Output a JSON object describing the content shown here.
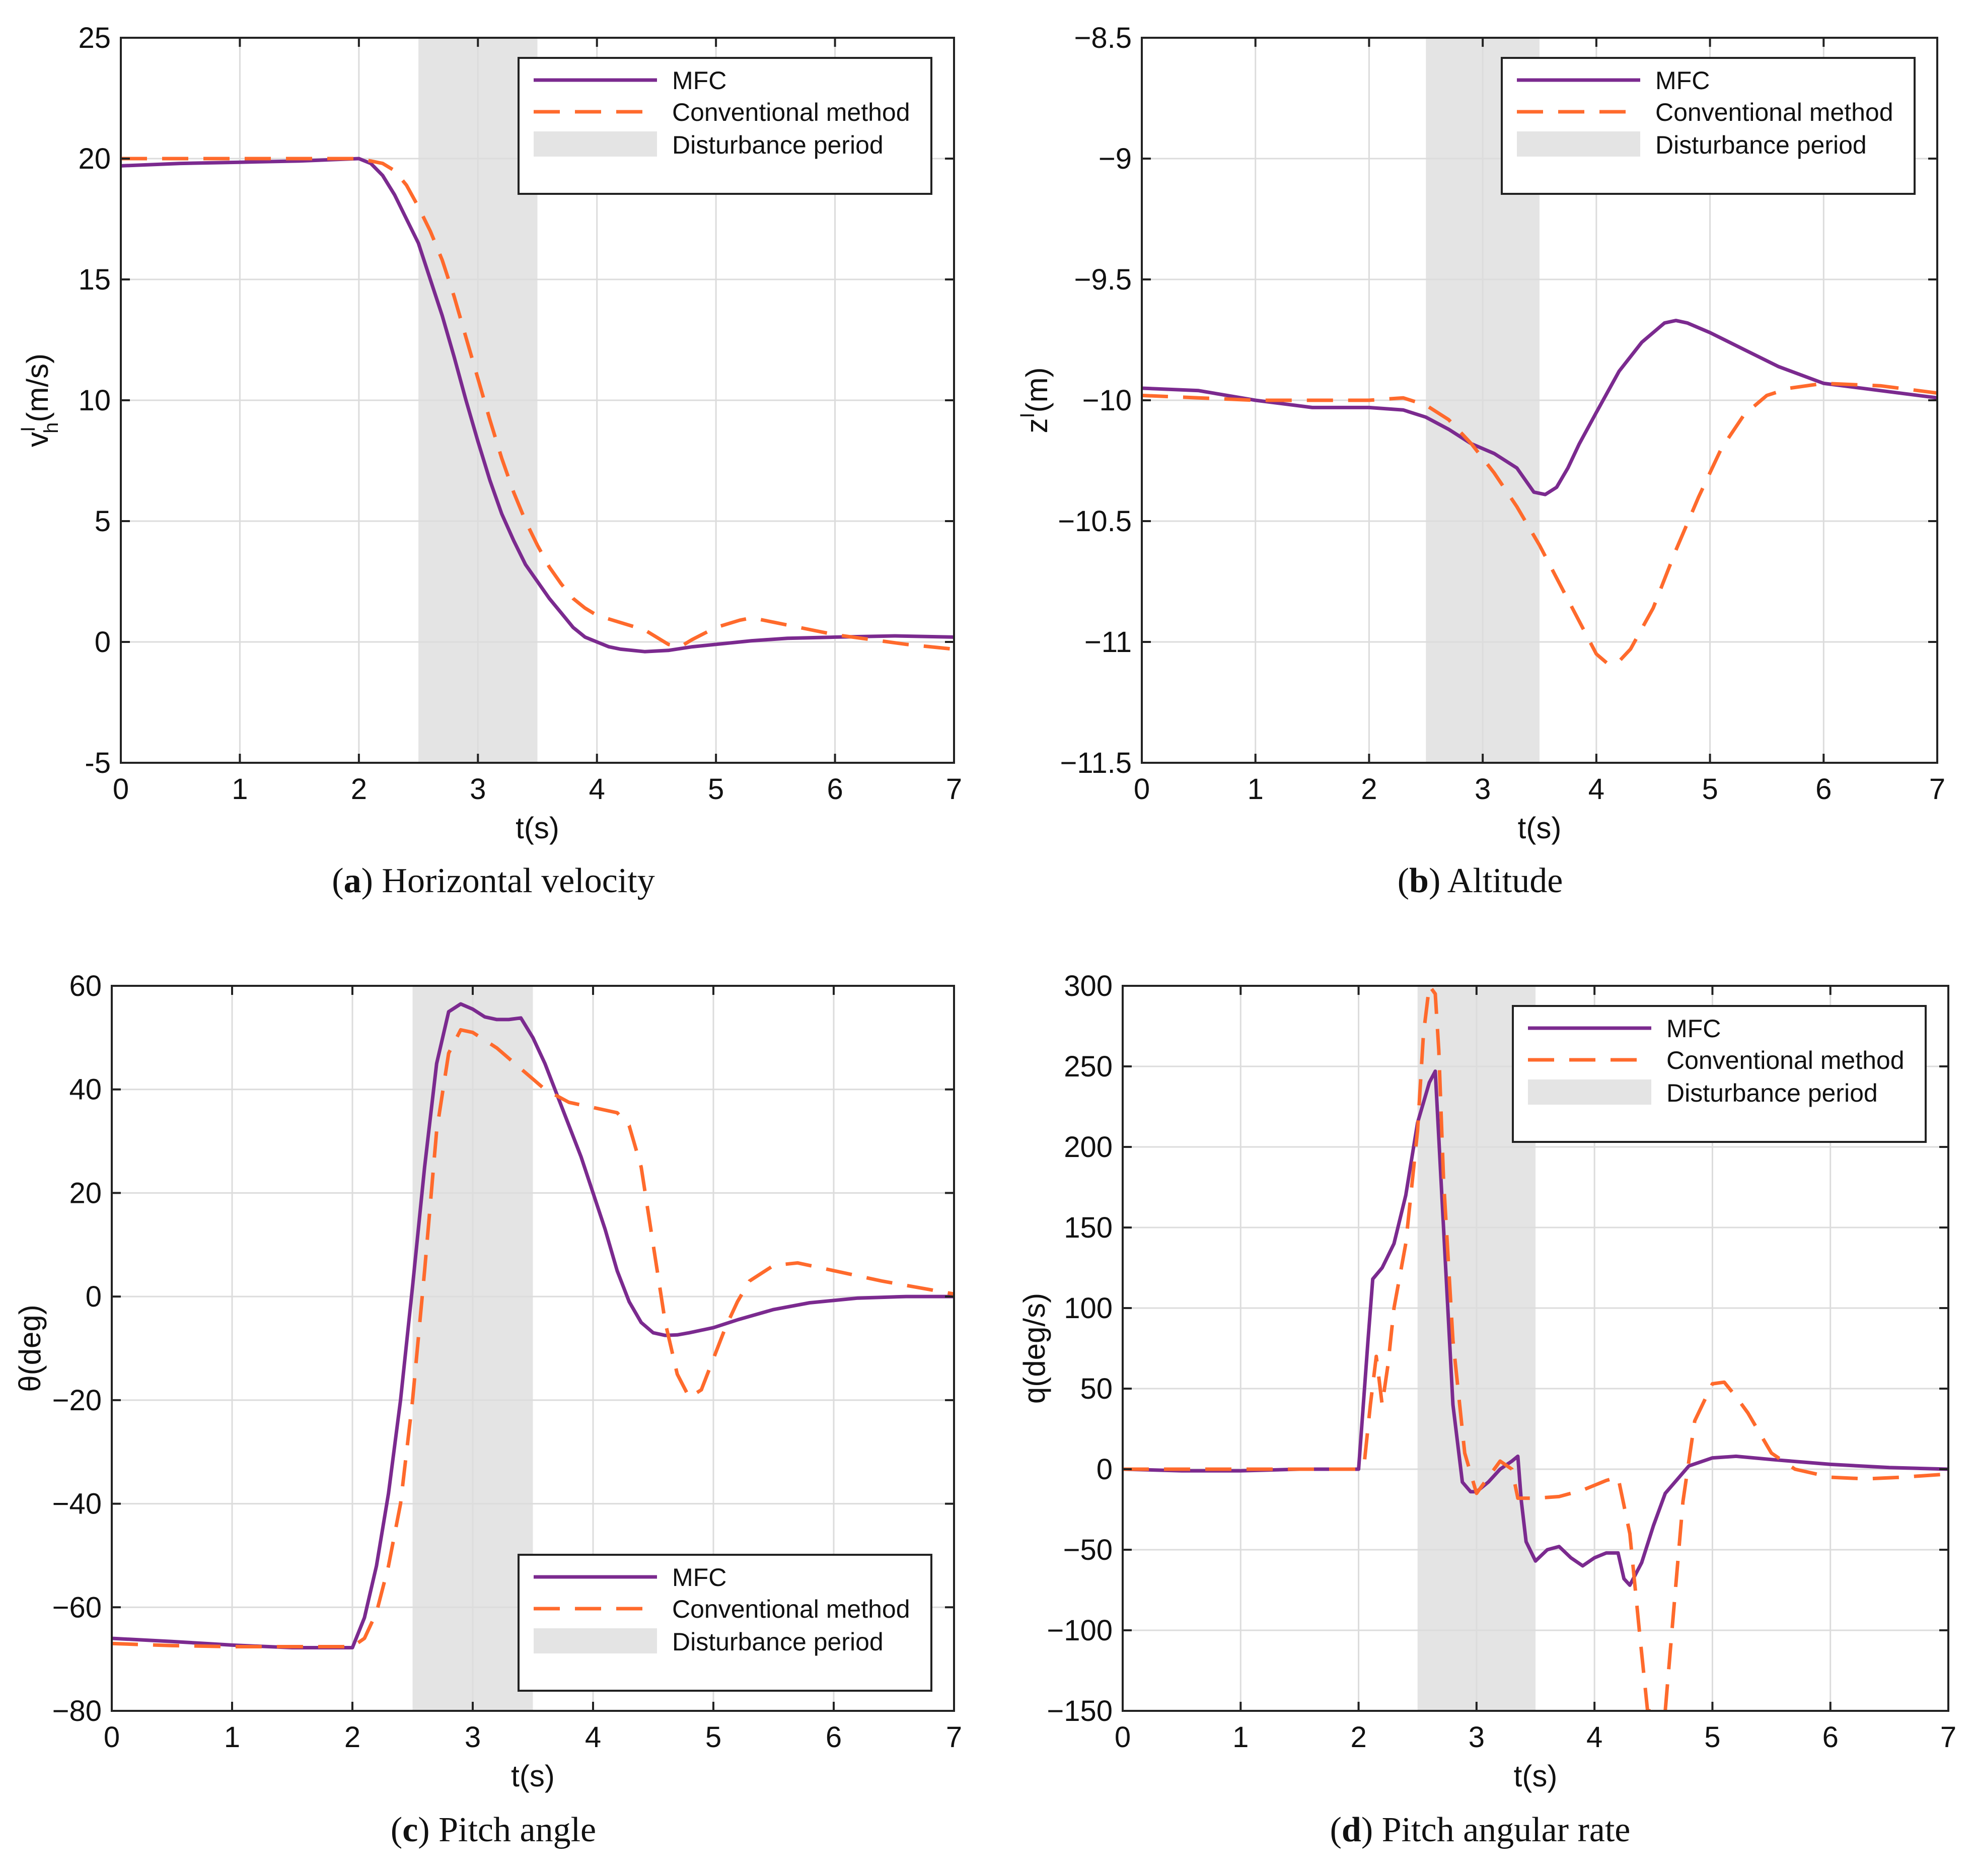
{
  "colors": {
    "mfc": "#7b2a8f",
    "conventional": "#ff6a2c",
    "disturbance": "#e4e4e4",
    "grid": "#dcdcdc",
    "axis": "#222222"
  },
  "chart_data": [
    {
      "id": "a",
      "type": "line",
      "caption_label": "a",
      "caption_text": "Horizontal velocity",
      "title": "",
      "xlabel": "t(s)",
      "ylabel": "v",
      "ylabel_sub": "h",
      "ylabel_sup": "I",
      "ylabel_tail": "(m/s)",
      "xlim": [
        0,
        7
      ],
      "ylim": [
        -5,
        25
      ],
      "xticks": [
        0,
        1,
        2,
        3,
        4,
        5,
        6,
        7
      ],
      "xtick_labels": [
        "0",
        "1",
        "2",
        "3",
        "4",
        "5",
        "6",
        "7"
      ],
      "yticks": [
        -5,
        0,
        5,
        10,
        15,
        20,
        25
      ],
      "ytick_labels": [
        "-5",
        "0",
        "5",
        "10",
        "15",
        "20",
        "25"
      ],
      "grid": true,
      "disturbance": [
        2.5,
        3.5
      ],
      "legend": {
        "position": "top-right",
        "entries": [
          "MFC",
          "Conventional method",
          "Disturbance period"
        ]
      },
      "series": [
        {
          "name": "MFC",
          "style": "solid",
          "x": [
            0,
            0.5,
            1,
            1.5,
            2,
            2.1,
            2.2,
            2.3,
            2.4,
            2.5,
            2.6,
            2.7,
            2.8,
            2.9,
            3.0,
            3.1,
            3.2,
            3.3,
            3.4,
            3.5,
            3.6,
            3.7,
            3.8,
            3.9,
            4.0,
            4.1,
            4.2,
            4.4,
            4.6,
            4.8,
            5.0,
            5.3,
            5.6,
            6.0,
            6.5,
            7.0
          ],
          "y": [
            19.7,
            19.8,
            19.85,
            19.9,
            20,
            19.8,
            19.3,
            18.5,
            17.5,
            16.5,
            15.0,
            13.5,
            11.8,
            10.0,
            8.3,
            6.7,
            5.3,
            4.2,
            3.2,
            2.5,
            1.8,
            1.2,
            0.6,
            0.2,
            0.0,
            -0.2,
            -0.3,
            -0.4,
            -0.35,
            -0.2,
            -0.1,
            0.05,
            0.15,
            0.2,
            0.25,
            0.2
          ]
        },
        {
          "name": "Conventional method",
          "style": "dashed",
          "x": [
            0,
            0.5,
            1,
            1.5,
            2,
            2.2,
            2.3,
            2.4,
            2.5,
            2.6,
            2.7,
            2.8,
            2.9,
            3.0,
            3.1,
            3.2,
            3.3,
            3.4,
            3.5,
            3.6,
            3.7,
            3.8,
            3.9,
            4.0,
            4.2,
            4.4,
            4.6,
            4.7,
            4.8,
            5.0,
            5.2,
            5.3,
            5.5,
            5.8,
            6.0,
            6.3,
            6.6,
            7.0
          ],
          "y": [
            20,
            20,
            20,
            20,
            20,
            19.8,
            19.5,
            18.9,
            18.0,
            17.0,
            15.8,
            14.3,
            12.6,
            10.9,
            9.2,
            7.6,
            6.2,
            5.0,
            4.0,
            3.1,
            2.4,
            1.8,
            1.4,
            1.1,
            0.8,
            0.5,
            -0.1,
            -0.2,
            0.1,
            0.6,
            0.9,
            1.0,
            0.8,
            0.5,
            0.3,
            0.1,
            -0.1,
            -0.3
          ]
        }
      ]
    },
    {
      "id": "b",
      "type": "line",
      "caption_label": "b",
      "caption_text": "Altitude",
      "title": "",
      "xlabel": "t(s)",
      "ylabel": "z",
      "ylabel_sub": "",
      "ylabel_sup": "I",
      "ylabel_tail": "(m)",
      "xlim": [
        0,
        7
      ],
      "ylim": [
        -11.5,
        -8.5
      ],
      "xticks": [
        0,
        1,
        2,
        3,
        4,
        5,
        6,
        7
      ],
      "xtick_labels": [
        "0",
        "1",
        "2",
        "3",
        "4",
        "5",
        "6",
        "7"
      ],
      "yticks": [
        -11.5,
        -11,
        -10.5,
        -10,
        -9.5,
        -9,
        -8.5
      ],
      "ytick_labels": [
        "−11.5",
        "−11",
        "−10.5",
        "−10",
        "−9.5",
        "−9",
        "−8.5"
      ],
      "grid": true,
      "disturbance": [
        2.5,
        3.5
      ],
      "legend": {
        "position": "top-right",
        "entries": [
          "MFC",
          "Conventional method",
          "Disturbance period"
        ]
      },
      "series": [
        {
          "name": "MFC",
          "style": "solid",
          "x": [
            0,
            0.5,
            1,
            1.5,
            2,
            2.3,
            2.5,
            2.7,
            2.9,
            3.1,
            3.3,
            3.45,
            3.55,
            3.65,
            3.75,
            3.85,
            4.0,
            4.2,
            4.4,
            4.6,
            4.7,
            4.8,
            5.0,
            5.3,
            5.6,
            6.0,
            6.5,
            7.0
          ],
          "y": [
            -9.95,
            -9.96,
            -10.0,
            -10.03,
            -10.03,
            -10.04,
            -10.07,
            -10.12,
            -10.18,
            -10.22,
            -10.28,
            -10.38,
            -10.39,
            -10.36,
            -10.28,
            -10.18,
            -10.05,
            -9.88,
            -9.76,
            -9.68,
            -9.67,
            -9.68,
            -9.72,
            -9.79,
            -9.86,
            -9.93,
            -9.96,
            -9.99
          ]
        },
        {
          "name": "Conventional method",
          "style": "dashed",
          "x": [
            0,
            0.5,
            1,
            1.5,
            2,
            2.3,
            2.5,
            2.7,
            2.9,
            3.1,
            3.3,
            3.5,
            3.7,
            3.9,
            4.0,
            4.1,
            4.2,
            4.3,
            4.5,
            4.7,
            4.9,
            5.1,
            5.3,
            5.5,
            5.7,
            6.0,
            6.5,
            7.0
          ],
          "y": [
            -9.98,
            -9.99,
            -10.0,
            -10.0,
            -10.0,
            -9.99,
            -10.02,
            -10.08,
            -10.18,
            -10.3,
            -10.44,
            -10.6,
            -10.78,
            -10.96,
            -11.05,
            -11.09,
            -11.08,
            -11.03,
            -10.86,
            -10.62,
            -10.4,
            -10.2,
            -10.06,
            -9.98,
            -9.95,
            -9.93,
            -9.94,
            -9.97
          ]
        }
      ]
    },
    {
      "id": "c",
      "type": "line",
      "caption_label": "c",
      "caption_text": "Pitch angle",
      "title": "",
      "xlabel": "t(s)",
      "ylabel": "θ",
      "ylabel_sub": "",
      "ylabel_sup": "",
      "ylabel_tail": "(deg)",
      "xlim": [
        0,
        7
      ],
      "ylim": [
        -80,
        60
      ],
      "xticks": [
        0,
        1,
        2,
        3,
        4,
        5,
        6,
        7
      ],
      "xtick_labels": [
        "0",
        "1",
        "2",
        "3",
        "4",
        "5",
        "6",
        "7"
      ],
      "yticks": [
        -80,
        -60,
        -40,
        -20,
        0,
        20,
        40,
        60
      ],
      "ytick_labels": [
        "−80",
        "−60",
        "−40",
        "−20",
        "0",
        "20",
        "40",
        "60"
      ],
      "grid": true,
      "disturbance": [
        2.5,
        3.5
      ],
      "legend": {
        "position": "bottom-right",
        "entries": [
          "MFC",
          "Conventional method",
          "Disturbance period"
        ]
      },
      "series": [
        {
          "name": "MFC",
          "style": "solid",
          "x": [
            0,
            0.5,
            1,
            1.5,
            2,
            2.1,
            2.2,
            2.3,
            2.4,
            2.5,
            2.6,
            2.7,
            2.8,
            2.9,
            3.0,
            3.1,
            3.2,
            3.3,
            3.4,
            3.5,
            3.6,
            3.7,
            3.8,
            3.9,
            4.0,
            4.1,
            4.2,
            4.3,
            4.4,
            4.5,
            4.6,
            4.7,
            4.8,
            5.0,
            5.2,
            5.5,
            5.8,
            6.2,
            6.6,
            7.0
          ],
          "y": [
            -66,
            -66.6,
            -67.3,
            -67.8,
            -67.8,
            -62,
            -52,
            -38,
            -20,
            2,
            25,
            45,
            55,
            56.5,
            55.5,
            54,
            53.5,
            53.5,
            53.8,
            50,
            45,
            39,
            33,
            27,
            20,
            13,
            5,
            -1,
            -5,
            -7,
            -7.5,
            -7.4,
            -7,
            -6,
            -4.5,
            -2.5,
            -1.2,
            -0.3,
            0,
            0
          ]
        },
        {
          "name": "Conventional method",
          "style": "dashed",
          "x": [
            0,
            0.5,
            1,
            1.5,
            2,
            2.1,
            2.2,
            2.3,
            2.4,
            2.5,
            2.6,
            2.7,
            2.8,
            2.9,
            3.0,
            3.1,
            3.2,
            3.3,
            3.4,
            3.5,
            3.6,
            3.8,
            4.0,
            4.2,
            4.3,
            4.4,
            4.5,
            4.6,
            4.7,
            4.8,
            4.9,
            5.0,
            5.1,
            5.2,
            5.3,
            5.5,
            5.7,
            6.0,
            6.4,
            7.0
          ],
          "y": [
            -67,
            -67.4,
            -67.6,
            -67.6,
            -67.6,
            -66,
            -61,
            -52,
            -40,
            -20,
            5,
            32,
            47,
            51.5,
            51,
            49.5,
            48,
            46,
            44,
            42,
            40,
            37.5,
            36.5,
            35.5,
            33,
            25,
            10,
            -5,
            -15,
            -19.5,
            -18,
            -12,
            -6,
            -1,
            3,
            6,
            6.5,
            5,
            3,
            0.5
          ]
        }
      ]
    },
    {
      "id": "d",
      "type": "line",
      "caption_label": "d",
      "caption_text": "Pitch angular rate",
      "title": "",
      "xlabel": "t(s)",
      "ylabel": "q",
      "ylabel_sub": "",
      "ylabel_sup": "",
      "ylabel_tail": "(deg/s)",
      "xlim": [
        0,
        7
      ],
      "ylim": [
        -150,
        300
      ],
      "xticks": [
        0,
        1,
        2,
        3,
        4,
        5,
        6,
        7
      ],
      "xtick_labels": [
        "0",
        "1",
        "2",
        "3",
        "4",
        "5",
        "6",
        "7"
      ],
      "yticks": [
        -150,
        -100,
        -50,
        0,
        50,
        100,
        150,
        200,
        250,
        300
      ],
      "ytick_labels": [
        "−150",
        "−100",
        "−50",
        "0",
        "50",
        "100",
        "150",
        "200",
        "250",
        "300"
      ],
      "grid": true,
      "disturbance": [
        2.5,
        3.5
      ],
      "legend": {
        "position": "top-right",
        "entries": [
          "MFC",
          "Conventional method",
          "Disturbance period"
        ]
      },
      "series": [
        {
          "name": "MFC",
          "style": "solid",
          "x": [
            0,
            0.5,
            1,
            1.5,
            2.0,
            2.02,
            2.08,
            2.12,
            2.2,
            2.3,
            2.4,
            2.5,
            2.6,
            2.65,
            2.72,
            2.8,
            2.88,
            2.95,
            3.0,
            3.1,
            3.2,
            3.3,
            3.35,
            3.38,
            3.42,
            3.5,
            3.6,
            3.7,
            3.8,
            3.9,
            4.0,
            4.1,
            4.2,
            4.25,
            4.3,
            4.4,
            4.5,
            4.6,
            4.8,
            5.0,
            5.2,
            5.5,
            6.0,
            6.5,
            7.0
          ],
          "y": [
            0,
            -1,
            -1,
            0,
            0,
            20,
            80,
            118,
            125,
            140,
            170,
            215,
            240,
            247,
            150,
            40,
            -8,
            -14,
            -14,
            -8,
            0,
            5,
            8,
            -20,
            -45,
            -57,
            -50,
            -48,
            -55,
            -60,
            -55,
            -52,
            -52,
            -68,
            -72,
            -58,
            -35,
            -15,
            2,
            7,
            8,
            6,
            3,
            1,
            0
          ]
        },
        {
          "name": "Conventional method",
          "style": "dashed",
          "x": [
            0,
            0.5,
            1,
            1.5,
            2.0,
            2.05,
            2.1,
            2.15,
            2.2,
            2.25,
            2.3,
            2.4,
            2.5,
            2.55,
            2.6,
            2.65,
            2.68,
            2.72,
            2.8,
            2.9,
            3.0,
            3.1,
            3.2,
            3.3,
            3.35,
            3.5,
            3.7,
            3.9,
            4.1,
            4.2,
            4.3,
            4.38,
            4.45,
            4.52,
            4.6,
            4.68,
            4.75,
            4.85,
            5.0,
            5.1,
            5.2,
            5.3,
            5.5,
            5.7,
            6.0,
            6.3,
            6.6,
            7.0
          ],
          "y": [
            0,
            0,
            0,
            0,
            0,
            5,
            40,
            70,
            40,
            65,
            100,
            140,
            210,
            270,
            300,
            295,
            260,
            180,
            80,
            10,
            -15,
            -5,
            5,
            0,
            -18,
            -18,
            -17,
            -13,
            -7,
            -5,
            -40,
            -100,
            -150,
            -150,
            -150,
            -80,
            -20,
            30,
            53,
            54,
            45,
            35,
            10,
            0,
            -5,
            -6,
            -5,
            -3
          ]
        }
      ]
    }
  ]
}
